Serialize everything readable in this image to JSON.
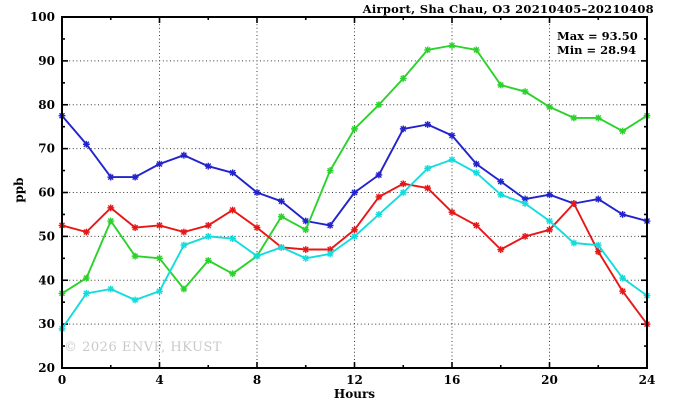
{
  "chart_data": {
    "type": "line",
    "title": "Airport, Sha Chau, O3 20210405–20210408",
    "xlabel": "Hours",
    "ylabel": "ppb",
    "max_label": "Max = 93.50",
    "min_label": "Min = 28.94",
    "watermark": "© 2026 ENVF, HKUST",
    "xlim": [
      0,
      24
    ],
    "ylim": [
      20,
      100
    ],
    "x_ticks": [
      0,
      4,
      8,
      12,
      16,
      20,
      24
    ],
    "x_minor_step": 2,
    "y_ticks": [
      20,
      30,
      40,
      50,
      60,
      70,
      80,
      90,
      100
    ],
    "y_minor_step": 5,
    "grid": "dotted lines at major ticks",
    "legend_position": "none",
    "marker": "asterisk",
    "x": [
      0,
      1,
      2,
      3,
      4,
      5,
      6,
      7,
      8,
      9,
      10,
      11,
      12,
      13,
      14,
      15,
      16,
      17,
      18,
      19,
      20,
      21,
      22,
      23,
      24
    ],
    "series": [
      {
        "name": "series-blue",
        "color": "#2323cd",
        "values": [
          77.5,
          71,
          63.5,
          63.5,
          66.5,
          68.5,
          66,
          64.5,
          60,
          58,
          53.5,
          52.5,
          60,
          64,
          74.5,
          75.5,
          73,
          66.5,
          62.5,
          58.5,
          59.5,
          57.5,
          58.5,
          55,
          53.5
        ]
      },
      {
        "name": "series-green",
        "color": "#2bd22b",
        "values": [
          37,
          40.5,
          53.5,
          45.5,
          45,
          38,
          44.5,
          41.5,
          45.5,
          54.5,
          51.5,
          65,
          74.5,
          80,
          86,
          92.5,
          93.5,
          92.5,
          84.5,
          83,
          79.5,
          77,
          77,
          74,
          77.5
        ]
      },
      {
        "name": "series-red",
        "color": "#e81717",
        "values": [
          52.5,
          51,
          56.5,
          52,
          52.5,
          51,
          52.5,
          56,
          52,
          47.5,
          47,
          47,
          51.5,
          59,
          62,
          61,
          55.5,
          52.5,
          47,
          50,
          51.5,
          57.5,
          46.5,
          37.5,
          30
        ]
      },
      {
        "name": "series-cyan",
        "color": "#15dcdc",
        "values": [
          28.94,
          37,
          38,
          35.5,
          37.5,
          48,
          50,
          49.5,
          45.5,
          47.5,
          45,
          46,
          50,
          55,
          60,
          65.5,
          67.5,
          64.5,
          59.5,
          57.5,
          53.5,
          48.5,
          48,
          40.5,
          36.5
        ]
      }
    ]
  }
}
